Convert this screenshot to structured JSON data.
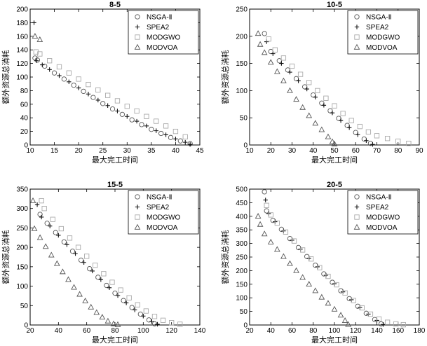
{
  "chart_data": [
    {
      "type": "scatter",
      "title": "8-5",
      "xlabel": "最大完工时间",
      "ylabel": "额外资源总消耗",
      "xlim": [
        10,
        45
      ],
      "ylim": [
        0,
        200
      ],
      "xticks": [
        10,
        15,
        20,
        25,
        30,
        35,
        40,
        45
      ],
      "yticks": [
        0,
        20,
        40,
        60,
        80,
        100,
        120,
        140,
        160,
        180,
        200
      ],
      "legend_position": "top-right",
      "series": [
        {
          "name": "NSGA-Ⅱ",
          "marker": "circle",
          "color": "#555555",
          "x": [
            11.0,
            11.5,
            13.0,
            15.0,
            17.0,
            19.0,
            21.0,
            23.0,
            25.0,
            27.0,
            29.0,
            31.0,
            33.0,
            35.0,
            37.0,
            39.0,
            41.0,
            43.0
          ],
          "y": [
            128,
            125,
            116,
            106,
            97,
            88,
            79,
            70,
            61,
            53,
            45,
            37,
            30,
            23,
            17,
            11,
            6,
            2
          ]
        },
        {
          "name": "SPEA2",
          "marker": "plus",
          "color": "#111111",
          "x": [
            10.8,
            11.3,
            12.5,
            14.0,
            16.0,
            18.0,
            20.0,
            22.0,
            24.0,
            26.0,
            28.0,
            30.0,
            32.0,
            34.0,
            36.0,
            38.0,
            40.0,
            42.0,
            43.0
          ],
          "y": [
            180,
            124,
            118,
            111,
            102,
            93,
            84,
            75,
            66,
            58,
            50,
            42,
            35,
            28,
            21,
            15,
            9,
            4,
            1
          ]
        },
        {
          "name": "MODGWO",
          "marker": "square",
          "color": "#aaaaaa",
          "x": [
            11.2,
            12.0,
            14.0,
            16.0,
            18.0,
            20.0,
            22.0,
            24.0,
            26.0,
            28.0,
            30.0,
            32.0,
            34.0,
            36.0,
            38.0,
            40.0,
            42.0
          ],
          "y": [
            137,
            134,
            124,
            115,
            106,
            97,
            89,
            81,
            73,
            65,
            57,
            50,
            42,
            35,
            28,
            20,
            12
          ]
        },
        {
          "name": "MODVOA",
          "marker": "triangle",
          "color": "#555555",
          "x": [
            11.0,
            12.0
          ],
          "y": [
            160,
            155
          ]
        }
      ]
    },
    {
      "type": "scatter",
      "title": "10-5",
      "xlabel": "最大完工时间",
      "ylabel": "额外资源总消耗",
      "xlim": [
        10,
        90
      ],
      "ylim": [
        0,
        250
      ],
      "xticks": [
        10,
        20,
        30,
        40,
        50,
        60,
        70,
        80,
        90
      ],
      "yticks": [
        0,
        50,
        100,
        150,
        200,
        250
      ],
      "legend_position": "top-right",
      "series": [
        {
          "name": "NSGA-Ⅱ",
          "marker": "circle",
          "color": "#555555",
          "x": [
            17,
            20,
            24,
            28,
            32,
            36,
            40,
            44,
            48,
            52,
            56,
            60,
            64,
            67
          ],
          "y": [
            205,
            172,
            155,
            138,
            122,
            107,
            92,
            77,
            63,
            49,
            36,
            23,
            11,
            3
          ]
        },
        {
          "name": "SPEA2",
          "marker": "plus",
          "color": "#111111",
          "x": [
            18,
            21,
            25,
            29,
            33,
            37,
            41,
            45,
            49,
            53,
            57,
            61,
            65,
            68
          ],
          "y": [
            190,
            168,
            150,
            134,
            118,
            103,
            88,
            73,
            59,
            45,
            32,
            19,
            8,
            1
          ]
        },
        {
          "name": "MODGWO",
          "marker": "square",
          "color": "#aaaaaa",
          "x": [
            19,
            22,
            26,
            30,
            34,
            38,
            42,
            46,
            50,
            54,
            58,
            62,
            66,
            70,
            75,
            80,
            85
          ],
          "y": [
            195,
            175,
            160,
            145,
            130,
            115,
            100,
            86,
            72,
            58,
            45,
            34,
            24,
            17,
            12,
            7,
            3
          ]
        },
        {
          "name": "MODVOA",
          "marker": "triangle",
          "color": "#555555",
          "x": [
            14,
            15,
            17,
            20,
            23,
            26,
            29,
            32,
            35,
            38,
            41,
            44,
            47,
            49,
            50
          ],
          "y": [
            205,
            185,
            170,
            152,
            135,
            118,
            100,
            84,
            69,
            54,
            40,
            28,
            15,
            6,
            2
          ]
        }
      ]
    },
    {
      "type": "scatter",
      "title": "15-5",
      "xlabel": "最大完工时间",
      "ylabel": "额外资源总消耗",
      "xlim": [
        20,
        140
      ],
      "ylim": [
        0,
        350
      ],
      "xticks": [
        20,
        40,
        60,
        80,
        100,
        120,
        140
      ],
      "yticks": [
        0,
        50,
        100,
        150,
        200,
        250,
        300,
        350
      ],
      "legend_position": "top-right",
      "series": [
        {
          "name": "NSGA-Ⅱ",
          "marker": "circle",
          "color": "#555555",
          "x": [
            27,
            32,
            38,
            44,
            50,
            56,
            62,
            68,
            74,
            80,
            86,
            92,
            98,
            104,
            108
          ],
          "y": [
            285,
            262,
            238,
            214,
            190,
            167,
            145,
            123,
            102,
            82,
            63,
            45,
            28,
            13,
            3
          ]
        },
        {
          "name": "SPEA2",
          "marker": "plus",
          "color": "#111111",
          "x": [
            25,
            28,
            34,
            40,
            46,
            52,
            58,
            64,
            70,
            76,
            82,
            88,
            94,
            100,
            106,
            110
          ],
          "y": [
            310,
            278,
            255,
            231,
            207,
            184,
            161,
            139,
            117,
            96,
            76,
            57,
            39,
            23,
            9,
            2
          ]
        },
        {
          "name": "MODGWO",
          "marker": "square",
          "color": "#aaaaaa",
          "x": [
            28,
            30,
            36,
            42,
            48,
            54,
            60,
            66,
            72,
            78,
            84,
            90,
            96,
            102,
            108,
            114,
            120,
            126
          ],
          "y": [
            320,
            300,
            272,
            248,
            224,
            200,
            177,
            154,
            132,
            110,
            90,
            70,
            52,
            36,
            22,
            12,
            6,
            2
          ]
        },
        {
          "name": "MODVOA",
          "marker": "triangle",
          "color": "#555555",
          "x": [
            22,
            23,
            27,
            31,
            35,
            39,
            43,
            47,
            51,
            55,
            59,
            63,
            67,
            71,
            75,
            79,
            82
          ],
          "y": [
            320,
            248,
            225,
            202,
            180,
            158,
            137,
            117,
            97,
            79,
            62,
            46,
            32,
            20,
            10,
            3,
            1
          ]
        }
      ]
    },
    {
      "type": "scatter",
      "title": "20-5",
      "xlabel": "最大完工时间",
      "ylabel": "额外资源总消耗",
      "xlim": [
        20,
        180
      ],
      "ylim": [
        0,
        500
      ],
      "xticks": [
        20,
        40,
        60,
        80,
        100,
        120,
        140,
        160,
        180
      ],
      "yticks": [
        0,
        50,
        100,
        150,
        200,
        250,
        300,
        350,
        400,
        450,
        500
      ],
      "legend_position": "top-right",
      "series": [
        {
          "name": "NSGA-Ⅱ",
          "marker": "circle",
          "color": "#555555",
          "x": [
            34,
            36,
            42,
            50,
            58,
            66,
            74,
            82,
            90,
            98,
            106,
            114,
            122,
            130,
            138,
            144
          ],
          "y": [
            490,
            420,
            385,
            352,
            318,
            285,
            252,
            220,
            188,
            157,
            126,
            97,
            69,
            43,
            20,
            4
          ]
        },
        {
          "name": "SPEA2",
          "marker": "plus",
          "color": "#111111",
          "x": [
            35,
            38,
            44,
            52,
            60,
            68,
            76,
            84,
            92,
            100,
            108,
            116,
            124,
            132,
            140,
            146
          ],
          "y": [
            460,
            410,
            380,
            346,
            312,
            279,
            246,
            214,
            183,
            152,
            122,
            93,
            65,
            40,
            17,
            2
          ]
        },
        {
          "name": "MODGWO",
          "marker": "square",
          "color": "#aaaaaa",
          "x": [
            36,
            40,
            46,
            54,
            62,
            70,
            78,
            86,
            94,
            102,
            110,
            118,
            126,
            134,
            142,
            150,
            158,
            165
          ],
          "y": [
            440,
            405,
            375,
            342,
            309,
            276,
            243,
            211,
            179,
            148,
            118,
            90,
            63,
            40,
            22,
            10,
            4,
            1
          ]
        },
        {
          "name": "MODVOA",
          "marker": "triangle",
          "color": "#555555",
          "x": [
            28,
            30,
            34,
            40,
            46,
            52,
            58,
            64,
            70,
            76,
            82,
            88,
            94,
            100,
            106,
            110,
            113
          ],
          "y": [
            400,
            370,
            335,
            305,
            278,
            252,
            226,
            200,
            175,
            150,
            126,
            102,
            80,
            58,
            36,
            16,
            2
          ]
        }
      ]
    }
  ]
}
